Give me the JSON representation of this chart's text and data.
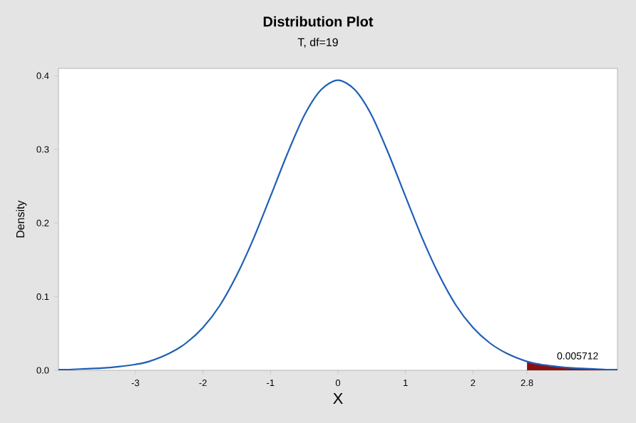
{
  "chart_data": {
    "type": "line",
    "title": "Distribution Plot",
    "subtitle": "T, df=19",
    "xlabel": "X",
    "ylabel": "Density",
    "xlim": [
      -4.14,
      4.14
    ],
    "ylim": [
      0,
      0.41
    ],
    "xticks": [
      -3,
      -2,
      -1,
      0,
      1,
      2,
      2.8
    ],
    "yticks": [
      {
        "value": 0,
        "label": "0.0"
      },
      {
        "value": 0.1,
        "label": "0.1"
      },
      {
        "value": 0.2,
        "label": "0.2"
      },
      {
        "value": 0.3,
        "label": "0.3"
      },
      {
        "value": 0.4,
        "label": "0.4"
      }
    ],
    "grid": false,
    "series": [
      {
        "type": "area",
        "color": "#8b1111",
        "x": [
          2.8,
          3,
          3.25,
          3.5,
          3.75,
          4,
          4.14
        ],
        "values": [
          0.012,
          0.008,
          0.005,
          0.003,
          0.002,
          0.001,
          0.001
        ]
      },
      {
        "color": "#1f5fb4",
        "x": [
          -4.14,
          -4,
          -3.75,
          -3.5,
          -3.25,
          -3,
          -2.8,
          -2.5,
          -2.25,
          -2,
          -1.75,
          -1.5,
          -1.25,
          -1,
          -0.75,
          -0.5,
          -0.25,
          0,
          0.25,
          0.5,
          0.75,
          1,
          1.25,
          1.5,
          1.75,
          2,
          2.25,
          2.5,
          2.8,
          3,
          3.25,
          3.5,
          3.75,
          4,
          4.14
        ],
        "values": [
          0.001,
          0.001,
          0.002,
          0.003,
          0.005,
          0.008,
          0.012,
          0.023,
          0.037,
          0.058,
          0.088,
          0.129,
          0.179,
          0.236,
          0.294,
          0.346,
          0.381,
          0.394,
          0.381,
          0.346,
          0.294,
          0.236,
          0.179,
          0.129,
          0.088,
          0.058,
          0.037,
          0.023,
          0.012,
          0.008,
          0.005,
          0.003,
          0.002,
          0.001,
          0.001
        ]
      }
    ],
    "annotations": [
      {
        "text": "0.005712",
        "x": 3.55,
        "y": 0.0125
      }
    ]
  }
}
